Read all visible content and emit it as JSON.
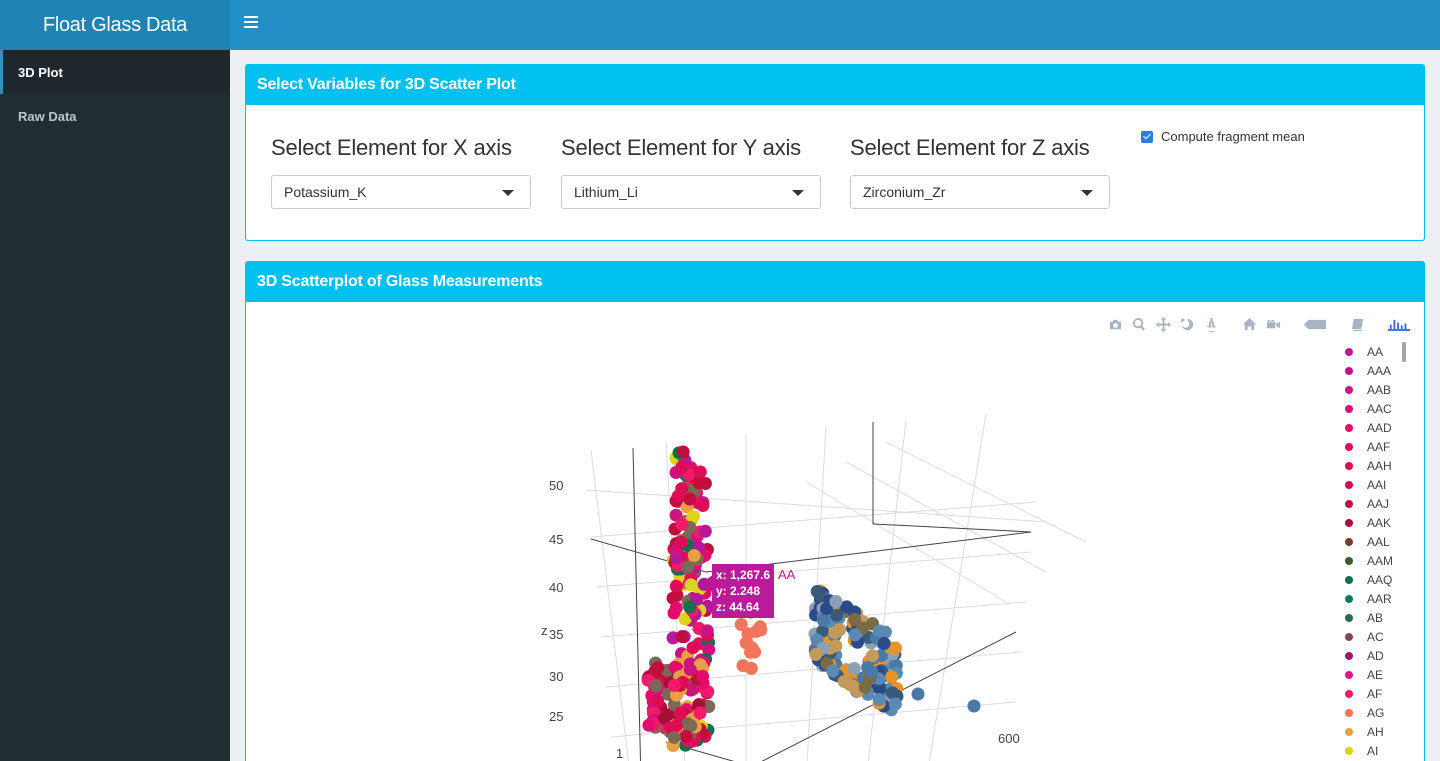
{
  "app": {
    "title": "Float Glass Data"
  },
  "sidebar": {
    "items": [
      {
        "label": "3D Plot",
        "active": true
      },
      {
        "label": "Raw Data",
        "active": false
      }
    ]
  },
  "select_box": {
    "title": "Select Variables for 3D Scatter Plot",
    "x": {
      "label": "Select Element for X axis",
      "value": "Potassium_K"
    },
    "y": {
      "label": "Select Element for Y axis",
      "value": "Lithium_Li"
    },
    "z": {
      "label": "Select Element for Z axis",
      "value": "Zirconium_Zr"
    },
    "checkbox": {
      "label": "Compute fragment mean",
      "checked": true
    }
  },
  "plot_box": {
    "title": "3D Scatterplot of Glass Measurements",
    "z_axis_title": "z",
    "z_ticks": [
      "50",
      "45",
      "40",
      "35",
      "30",
      "25"
    ],
    "other_ticks": [
      "1",
      "600"
    ],
    "modebar": [
      "camera-icon",
      "zoom-icon",
      "pan-icon",
      "orbit-icon",
      "turntable-icon",
      "home-icon",
      "camera-reset-icon",
      "tag-icon",
      "book-icon",
      "plotly-logo-icon"
    ],
    "tooltip": {
      "x": "x: 1,267.6",
      "y": "y: 2.248",
      "z": "z: 44.64",
      "name": "AA",
      "color": "#bb1a9a"
    },
    "legend": [
      {
        "name": "AA",
        "color": "#b5199a"
      },
      {
        "name": "AAA",
        "color": "#c0148e"
      },
      {
        "name": "AAB",
        "color": "#cd1282"
      },
      {
        "name": "AAC",
        "color": "#d80f77"
      },
      {
        "name": "AAD",
        "color": "#e30b6c"
      },
      {
        "name": "AAF",
        "color": "#e10a5f"
      },
      {
        "name": "AAH",
        "color": "#dc0d55"
      },
      {
        "name": "AAI",
        "color": "#cf0f47"
      },
      {
        "name": "AAJ",
        "color": "#c00f3c"
      },
      {
        "name": "AAK",
        "color": "#a80f36"
      },
      {
        "name": "AAL",
        "color": "#7a3a2e"
      },
      {
        "name": "AAM",
        "color": "#3e5a2a"
      },
      {
        "name": "AAQ",
        "color": "#12704a"
      },
      {
        "name": "AAR",
        "color": "#127a58"
      },
      {
        "name": "AB",
        "color": "#2a6a5a"
      },
      {
        "name": "AC",
        "color": "#7a4a55"
      },
      {
        "name": "AD",
        "color": "#a01670"
      },
      {
        "name": "AE",
        "color": "#e01680"
      },
      {
        "name": "AF",
        "color": "#f21a6a"
      },
      {
        "name": "AG",
        "color": "#f2745a"
      },
      {
        "name": "AH",
        "color": "#e8a042"
      },
      {
        "name": "AI",
        "color": "#dcd41a"
      }
    ]
  }
}
